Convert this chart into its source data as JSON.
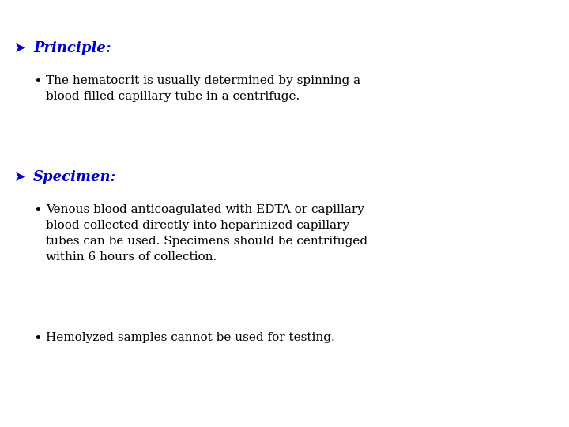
{
  "background_color": "#ffffff",
  "heading_color": "#0000CC",
  "text_color": "#000000",
  "heading1": "Principle:",
  "heading2": "Specimen:",
  "bullet1": "The hematocrit is usually determined by spinning a\nblood-filled capillary tube in a centrifuge.",
  "bullet2a": "Venous blood anticoagulated with EDTA or capillary\nblood collected directly into heparinized capillary\ntubes can be used. Specimens should be centrifuged\nwithin 6 hours of collection.",
  "bullet2b": "Hemolyzed samples cannot be used for testing.",
  "heading_fontsize": 13,
  "text_fontsize": 11,
  "figsize": [
    7.2,
    5.4
  ],
  "dpi": 100
}
